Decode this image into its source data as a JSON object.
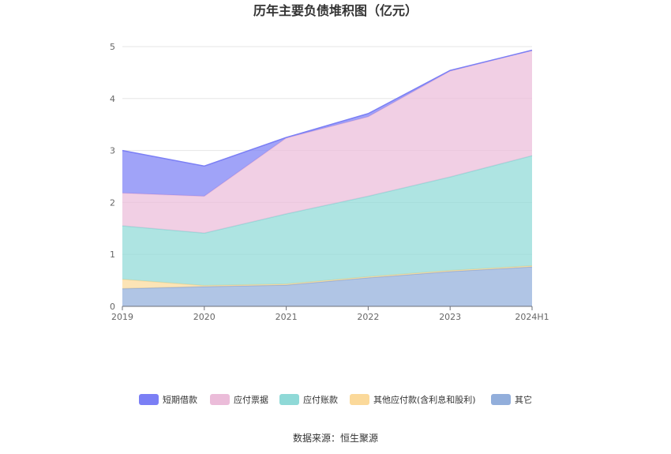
{
  "chart_data": {
    "type": "area",
    "stacked": true,
    "title": "历年主要负债堆积图（亿元）",
    "categories": [
      "2019",
      "2020",
      "2021",
      "2022",
      "2023",
      "2024H1"
    ],
    "ylim": [
      0,
      5
    ],
    "yticks": [
      "0",
      "1",
      "2",
      "3",
      "4",
      "5"
    ],
    "grid": true,
    "legend_position": "bottom",
    "series": [
      {
        "name": "其它",
        "color": "#92aedb",
        "values": [
          0.34,
          0.38,
          0.41,
          0.55,
          0.67,
          0.76
        ]
      },
      {
        "name": "其他应付款(含利息和股利)",
        "color": "#fbd99a",
        "values": [
          0.18,
          0.02,
          0.02,
          0.02,
          0.02,
          0.02
        ]
      },
      {
        "name": "应付账款",
        "color": "#8fd9d7",
        "values": [
          1.03,
          1.01,
          1.35,
          1.55,
          1.8,
          2.12
        ]
      },
      {
        "name": "应付票据",
        "color": "#ebbcd9",
        "values": [
          0.63,
          0.71,
          1.46,
          1.53,
          2.04,
          2.03
        ]
      },
      {
        "name": "短期借款",
        "color": "#7b7ff5",
        "values": [
          0.82,
          0.58,
          0.01,
          0.06,
          0.01,
          0.0
        ]
      }
    ],
    "legend_order": [
      "短期借款",
      "应付票据",
      "应付账款",
      "其他应付款(含利息和股利)",
      "其它"
    ],
    "source": "数据来源：恒生聚源"
  }
}
